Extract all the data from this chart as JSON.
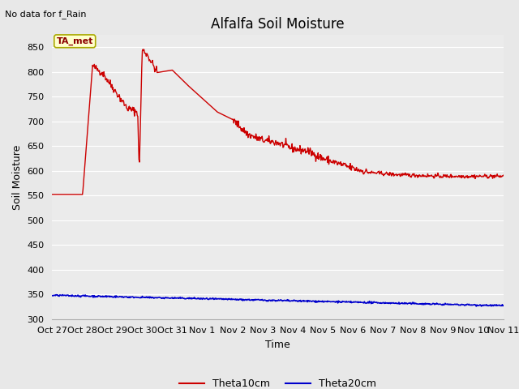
{
  "title": "Alfalfa Soil Moisture",
  "ylabel": "Soil Moisture",
  "xlabel": "Time",
  "no_data_text": "No data for f_Rain",
  "ta_met_label": "TA_met",
  "ylim": [
    300,
    875
  ],
  "yticks": [
    300,
    350,
    400,
    450,
    500,
    550,
    600,
    650,
    700,
    750,
    800,
    850
  ],
  "xlabels": [
    "Oct 27",
    "Oct 28",
    "Oct 29",
    "Oct 30",
    "Oct 31",
    "Nov 1",
    "Nov 2",
    "Nov 3",
    "Nov 4",
    "Nov 5",
    "Nov 6",
    "Nov 7",
    "Nov 8",
    "Nov 9",
    "Nov 10",
    "Nov 11"
  ],
  "bg_color": "#e8e8e8",
  "plot_bg": "#ebebeb",
  "line1_color": "#cc0000",
  "line2_color": "#0000cc",
  "legend1_label": "Theta10cm",
  "legend2_label": "Theta20cm",
  "title_fontsize": 12,
  "label_fontsize": 9,
  "tick_fontsize": 8,
  "grid_color": "#ffffff"
}
